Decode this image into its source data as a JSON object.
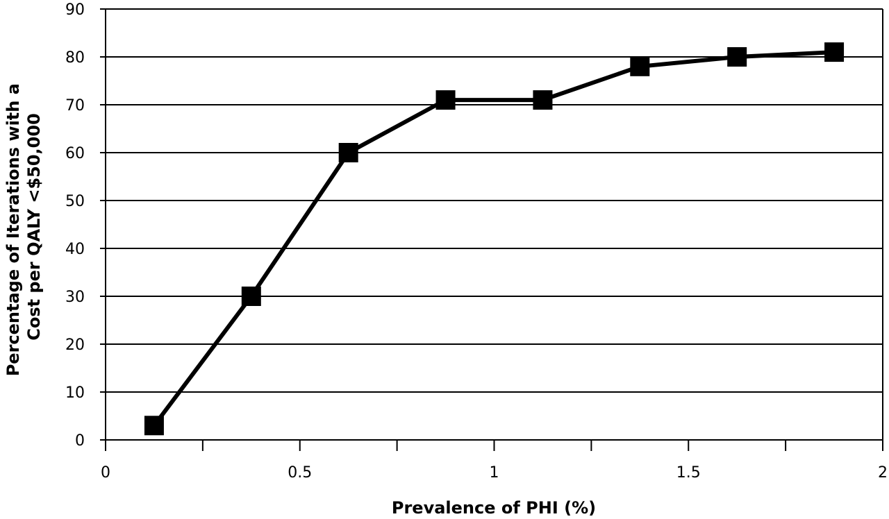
{
  "chart_data": {
    "type": "line",
    "title": "",
    "xlabel": "Prevalence of PHI (%)",
    "ylabel_lines": [
      "Percentage of Iterations with a",
      "Cost per QALY  <$50,000"
    ],
    "xlim": [
      0,
      2
    ],
    "ylim": [
      0,
      90
    ],
    "x_ticks": [
      0,
      0.5,
      1,
      1.5,
      2
    ],
    "x_tick_labels": [
      "0",
      "0.5",
      "1",
      "1.5",
      "2"
    ],
    "x_minor_ticks": [
      0.25,
      0.75,
      1.25,
      1.75
    ],
    "y_ticks": [
      0,
      10,
      20,
      30,
      40,
      50,
      60,
      70,
      80,
      90
    ],
    "y_tick_labels": [
      "0",
      "10",
      "20",
      "30",
      "40",
      "50",
      "60",
      "70",
      "80",
      "90"
    ],
    "grid": "horizontal",
    "series": [
      {
        "marker": "square",
        "color": "#000000",
        "x": [
          0.125,
          0.375,
          0.625,
          0.875,
          1.125,
          1.375,
          1.625,
          1.875
        ],
        "y": [
          3,
          30,
          60,
          71,
          71,
          78,
          80,
          81
        ]
      }
    ]
  }
}
